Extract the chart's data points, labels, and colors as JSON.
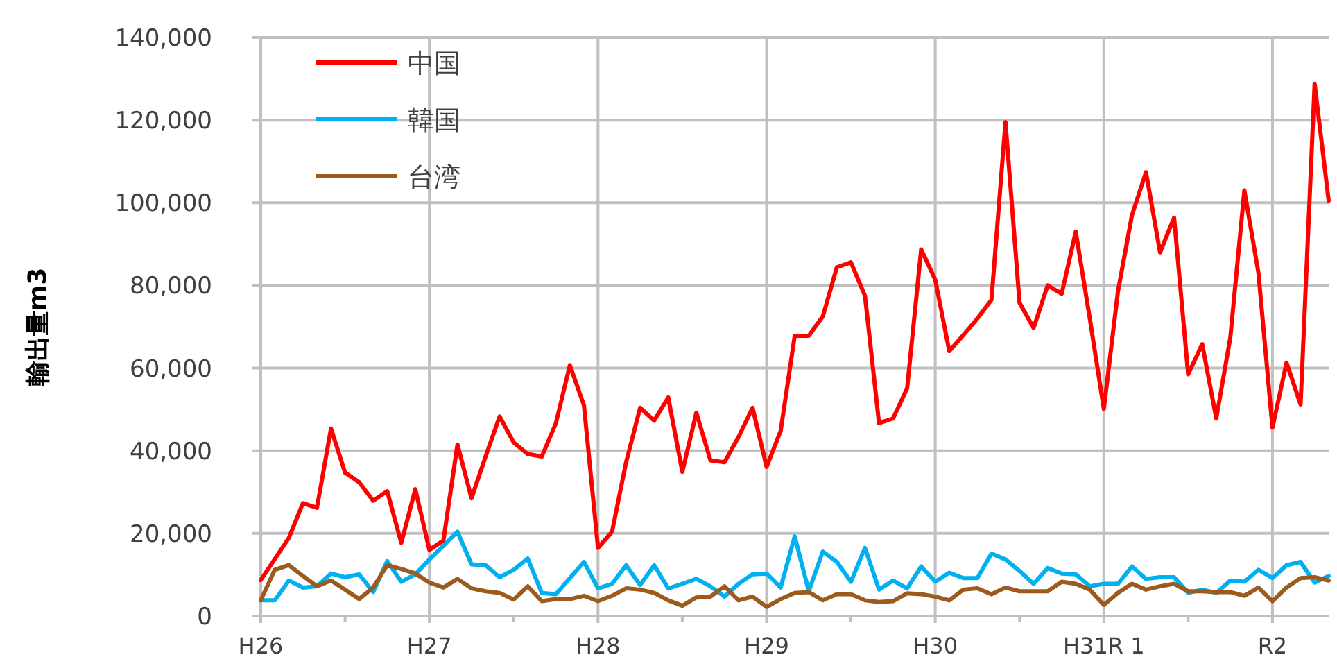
{
  "chart_data": {
    "type": "line",
    "ylabel": "輸出量m3",
    "categories": [
      "H26",
      null,
      null,
      null,
      null,
      null,
      null,
      null,
      null,
      null,
      null,
      null,
      "H27",
      null,
      null,
      null,
      null,
      null,
      null,
      null,
      null,
      null,
      null,
      null,
      "H28",
      null,
      null,
      null,
      null,
      null,
      null,
      null,
      null,
      null,
      null,
      null,
      "H29",
      null,
      null,
      null,
      null,
      null,
      null,
      null,
      null,
      null,
      null,
      null,
      "H30",
      null,
      null,
      null,
      null,
      null,
      null,
      null,
      null,
      null,
      null,
      null,
      "H31R 1",
      null,
      null,
      null,
      null,
      null,
      null,
      null,
      null,
      null,
      null,
      null,
      "R2",
      null,
      null,
      null,
      null
    ],
    "series": [
      {
        "name": "中国",
        "color": "#ff0000",
        "values": [
          8700,
          13800,
          18900,
          27300,
          26200,
          45400,
          34700,
          32400,
          27900,
          30200,
          17700,
          30700,
          16000,
          18300,
          41500,
          28500,
          38600,
          48300,
          42000,
          39200,
          38600,
          46600,
          60700,
          51000,
          16500,
          20400,
          37200,
          50400,
          47300,
          52900,
          34900,
          49200,
          37700,
          37200,
          43300,
          50400,
          36100,
          44800,
          67800,
          67800,
          72500,
          84400,
          85600,
          77500,
          46700,
          47800,
          55100,
          88700,
          81400,
          64100,
          68000,
          72000,
          76500,
          119500,
          75800,
          69700,
          80000,
          78000,
          93000,
          72000,
          50100,
          78500,
          97000,
          107400,
          88000,
          96400,
          58500,
          65800,
          47800,
          67400,
          103000,
          83100,
          45600,
          61300,
          51200,
          128800,
          100500
        ]
      },
      {
        "name": "韓国",
        "color": "#00b0f0",
        "values": [
          3800,
          3800,
          8600,
          6900,
          7200,
          10300,
          9400,
          10100,
          5800,
          13300,
          8300,
          10100,
          13700,
          17000,
          20400,
          12500,
          12300,
          9400,
          11200,
          13900,
          5600,
          5300,
          9200,
          13100,
          6700,
          7800,
          12300,
          7500,
          12300,
          6700,
          7800,
          9000,
          7200,
          4700,
          7800,
          10100,
          10300,
          6900,
          19300,
          6000,
          15600,
          13100,
          8300,
          16500,
          6400,
          8600,
          6700,
          12000,
          8300,
          10500,
          9200,
          9200,
          15100,
          13700,
          10900,
          7800,
          11600,
          10300,
          10100,
          7200,
          7800,
          7800,
          12000,
          9000,
          9400,
          9400,
          5600,
          6400,
          5600,
          8600,
          8300,
          11200,
          9200,
          12300,
          13100,
          8100,
          9700
        ]
      },
      {
        "name": "台湾",
        "color": "#9c5a1c",
        "values": [
          3800,
          11200,
          12300,
          9700,
          7200,
          8600,
          6400,
          4100,
          6900,
          12300,
          11400,
          10300,
          8100,
          6900,
          9000,
          6700,
          6000,
          5600,
          4000,
          7200,
          3600,
          4100,
          4100,
          4900,
          3600,
          4900,
          6700,
          6400,
          5600,
          3800,
          2500,
          4500,
          4700,
          7200,
          3800,
          4700,
          2200,
          4100,
          5600,
          5800,
          3800,
          5300,
          5300,
          3800,
          3400,
          3600,
          5500,
          5300,
          4700,
          3800,
          6400,
          6700,
          5300,
          6900,
          6000,
          6000,
          6000,
          8300,
          7800,
          6400,
          2700,
          5600,
          7800,
          6400,
          7200,
          7800,
          6000,
          6000,
          5800,
          5800,
          4900,
          6900,
          3600,
          6900,
          9200,
          9400,
          8600
        ]
      }
    ],
    "ylim": [
      0,
      140000
    ],
    "yticks": [
      {
        "value": 0,
        "label": "0"
      },
      {
        "value": 20000,
        "label": "20,000"
      },
      {
        "value": 40000,
        "label": "40,000"
      },
      {
        "value": 60000,
        "label": "60,000"
      },
      {
        "value": 80000,
        "label": "80,000"
      },
      {
        "value": 100000,
        "label": "100,000"
      },
      {
        "value": 120000,
        "label": "120,000"
      },
      {
        "value": 140000,
        "label": "140,000"
      }
    ],
    "grid": true,
    "legend": "top left",
    "line_style": "solid"
  }
}
